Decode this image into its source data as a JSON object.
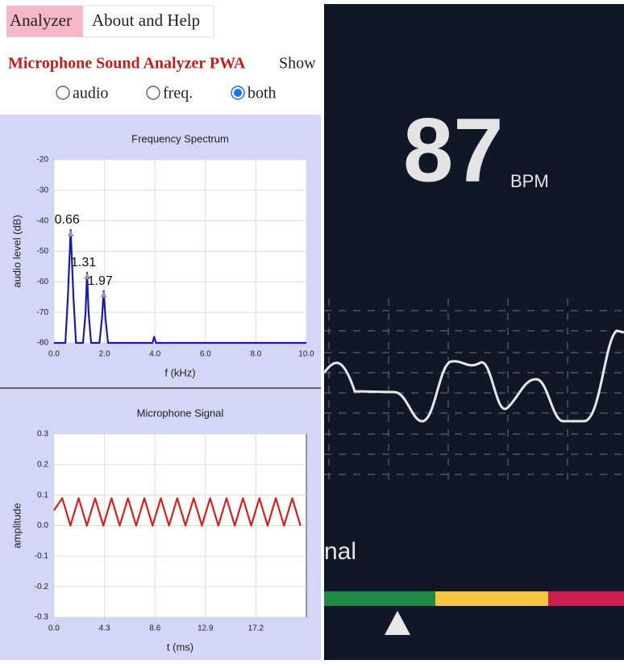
{
  "tabs": [
    "Analyzer",
    "About and Help"
  ],
  "app_title": "Microphone Sound Analyzer PWA",
  "show_label": "Show",
  "radio": {
    "options": [
      "audio",
      "freq.",
      "both"
    ],
    "selected": 2
  },
  "spectrum": {
    "type": "line",
    "title": "Frequency Spectrum",
    "ylabel": "audio level (dB)",
    "xlabel": "f (kHz)",
    "xlim": [
      0,
      10
    ],
    "ylim": [
      -80,
      -20
    ],
    "xticks": [
      {
        "value": 0,
        "label": "0.0"
      },
      {
        "value": 2,
        "label": "2.0"
      },
      {
        "value": 4,
        "label": "4.0"
      },
      {
        "value": 6,
        "label": "6.0"
      },
      {
        "value": 8,
        "label": "8.0"
      },
      {
        "value": 10,
        "label": "10.0"
      }
    ],
    "yticks": [
      -20,
      -30,
      -40,
      -50,
      -60,
      -70,
      -80
    ],
    "grid": true,
    "series": [
      {
        "color": "#1a1aa8",
        "x": [
          0,
          0.45,
          0.55,
          0.66,
          0.77,
          0.87,
          1.15,
          1.25,
          1.31,
          1.37,
          1.47,
          1.8,
          1.9,
          1.97,
          2.04,
          2.14,
          3.9,
          3.97,
          4.04,
          10
        ],
        "values": [
          -80,
          -80,
          -65,
          -43,
          -65,
          -80,
          -80,
          -70,
          -57,
          -70,
          -80,
          -80,
          -72,
          -63,
          -72,
          -80,
          -80,
          -78,
          -80,
          -80
        ]
      }
    ],
    "annotations": [
      {
        "label": "0.66",
        "x": 0.66,
        "y": -43
      },
      {
        "label": "1.31",
        "x": 1.31,
        "y": -57
      },
      {
        "label": "1.97",
        "x": 1.97,
        "y": -63
      }
    ]
  },
  "signal": {
    "type": "line",
    "title": "Microphone Signal",
    "ylabel": "amplitude",
    "xlabel": "t (ms)",
    "xlim": [
      0,
      21.5
    ],
    "ylim": [
      -0.3,
      0.3
    ],
    "xticks": [
      {
        "value": 0,
        "label": "0.0"
      },
      4.3,
      8.6,
      12.9,
      17.2
    ],
    "yticks": [
      0.3,
      0.2,
      0.1,
      {
        "value": 0,
        "label": "0.0"
      },
      -0.1,
      -0.2,
      -0.3
    ],
    "grid": true,
    "series": [
      {
        "color": "#d42020",
        "x": [
          0,
          0.7,
          1.4,
          2.1,
          2.8,
          3.5,
          4.2,
          4.9,
          5.6,
          6.3,
          7.0,
          7.7,
          8.4,
          9.1,
          9.8,
          10.5,
          11.2,
          11.9,
          12.6,
          13.3,
          14.0,
          14.7,
          15.4,
          16.1,
          16.8,
          17.5,
          18.2,
          18.9,
          19.6,
          20.3,
          21.0
        ],
        "values": [
          0.05,
          0.09,
          0,
          0.09,
          0,
          0.09,
          0,
          0.09,
          0,
          0.09,
          0,
          0.09,
          0,
          0.09,
          0,
          0.09,
          0,
          0.09,
          0,
          0.09,
          0,
          0.09,
          0,
          0.09,
          0,
          0.09,
          0,
          0.09,
          0,
          0.09,
          0
        ]
      }
    ]
  },
  "monitor": {
    "bpm_value": "87",
    "bpm_unit": "BPM",
    "cut_label": "nal"
  }
}
